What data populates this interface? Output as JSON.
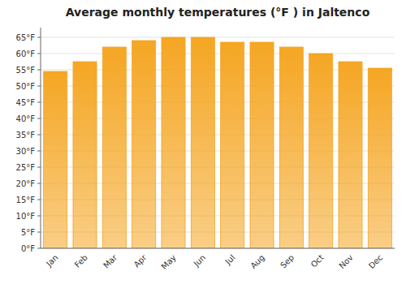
{
  "chart_data": {
    "type": "bar",
    "title": "Average monthly temperatures (°F ) in Jaltenco",
    "categories": [
      "Jan",
      "Feb",
      "Mar",
      "Apr",
      "May",
      "Jun",
      "Jul",
      "Aug",
      "Sep",
      "Oct",
      "Nov",
      "Dec"
    ],
    "values": [
      54.5,
      57.5,
      62.0,
      64.0,
      65.0,
      65.0,
      63.5,
      63.5,
      62.0,
      60.0,
      57.5,
      55.5
    ],
    "color": "#F5A623",
    "ylim": [
      0,
      68
    ],
    "yticks": [
      {
        "value": 0,
        "label": "0°F"
      },
      {
        "value": 5,
        "label": "5°F"
      },
      {
        "value": 10,
        "label": "10°F"
      },
      {
        "value": 15,
        "label": "15°F"
      },
      {
        "value": 20,
        "label": "20°F"
      },
      {
        "value": 25,
        "label": "25°F"
      },
      {
        "value": 30,
        "label": "30°F"
      },
      {
        "value": 35,
        "label": "35°F"
      },
      {
        "value": 40,
        "label": "40°F"
      },
      {
        "value": 45,
        "label": "45°F"
      },
      {
        "value": 50,
        "label": "50°F"
      },
      {
        "value": 55,
        "label": "55°F"
      },
      {
        "value": 60,
        "label": "60°F"
      },
      {
        "value": 65,
        "label": "65°F"
      }
    ],
    "grid": true
  }
}
